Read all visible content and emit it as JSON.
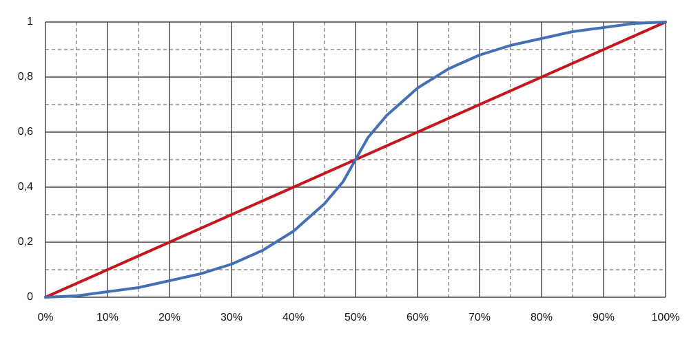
{
  "chart_data": {
    "type": "line",
    "xlim": [
      0,
      100
    ],
    "ylim": [
      0,
      1
    ],
    "xticks": [
      {
        "value": 0,
        "label": "0%"
      },
      {
        "value": 10,
        "label": "10%"
      },
      {
        "value": 20,
        "label": "20%"
      },
      {
        "value": 30,
        "label": "30%"
      },
      {
        "value": 40,
        "label": "40%"
      },
      {
        "value": 50,
        "label": "50%"
      },
      {
        "value": 60,
        "label": "60%"
      },
      {
        "value": 70,
        "label": "70%"
      },
      {
        "value": 80,
        "label": "80%"
      },
      {
        "value": 90,
        "label": "90%"
      },
      {
        "value": 100,
        "label": "100%"
      }
    ],
    "yticks": [
      0,
      {
        "value": 0.2,
        "label": "0,2"
      },
      {
        "value": 0.4,
        "label": "0,4"
      },
      {
        "value": 0.6,
        "label": "0,6"
      },
      {
        "value": 0.8,
        "label": "0,8"
      },
      1
    ],
    "grid": true,
    "minor_grid": true,
    "series": [
      {
        "color": "#c4161c",
        "x": [
          0,
          100
        ],
        "values": [
          0,
          1
        ]
      },
      {
        "color": "#4470b6",
        "x": [
          0,
          5,
          10,
          15,
          20,
          25,
          30,
          35,
          40,
          45,
          48,
          50,
          52,
          55,
          60,
          65,
          70,
          75,
          80,
          85,
          90,
          95,
          100
        ],
        "values": [
          0,
          0.005,
          0.02,
          0.035,
          0.06,
          0.085,
          0.12,
          0.17,
          0.24,
          0.34,
          0.42,
          0.5,
          0.58,
          0.66,
          0.76,
          0.83,
          0.88,
          0.915,
          0.94,
          0.965,
          0.98,
          0.995,
          1
        ]
      }
    ]
  }
}
